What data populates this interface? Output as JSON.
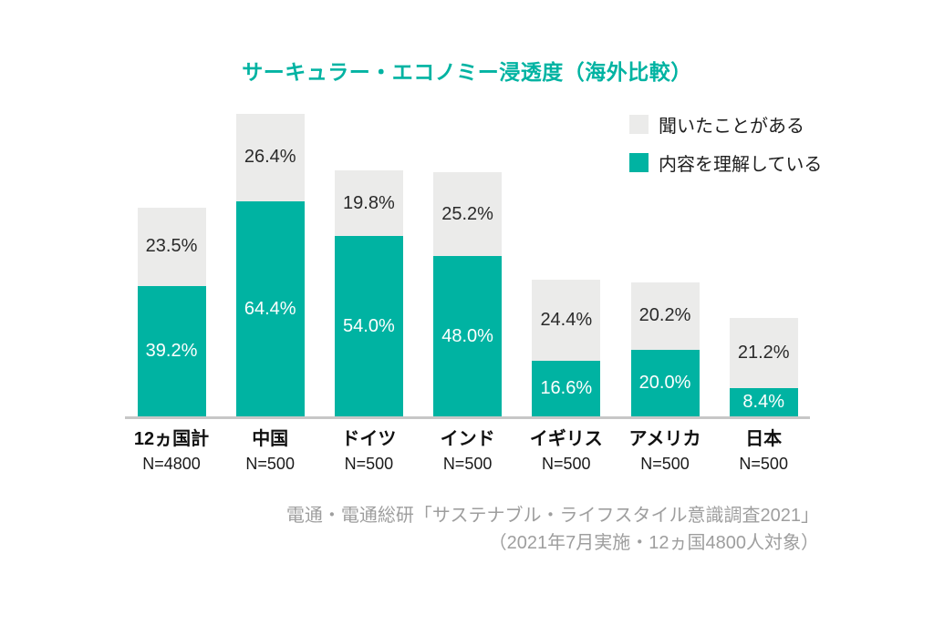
{
  "title": {
    "text": "サーキュラー・エコノミー浸透度（海外比較）",
    "color": "#00b3a2"
  },
  "legend": {
    "items": [
      {
        "label": "聞いたことがある",
        "color": "#ebebea"
      },
      {
        "label": "内容を理解している",
        "color": "#00b3a2"
      }
    ]
  },
  "chart_data": {
    "type": "bar",
    "stacked": true,
    "orientation": "vertical",
    "title": "サーキュラー・エコノミー浸透度（海外比較）",
    "categories": [
      "12ヵ国計",
      "中国",
      "ドイツ",
      "インド",
      "イギリス",
      "アメリカ",
      "日本"
    ],
    "sample_sizes": [
      "N=4800",
      "N=500",
      "N=500",
      "N=500",
      "N=500",
      "N=500",
      "N=500"
    ],
    "series": [
      {
        "name": "内容を理解している",
        "color": "#00b3a2",
        "label_color": "#ffffff",
        "values": [
          39.2,
          64.4,
          54.0,
          48.0,
          16.6,
          20.0,
          8.4
        ]
      },
      {
        "name": "聞いたことがある",
        "color": "#ebebea",
        "label_color": "#2a2a2a",
        "values": [
          23.5,
          26.4,
          19.8,
          25.2,
          24.4,
          20.2,
          21.2
        ]
      }
    ],
    "value_suffix": "%",
    "value_decimals": 1,
    "ylim": [
      0,
      100
    ],
    "grid": false,
    "legend_position": "top-right"
  },
  "source": {
    "lines": [
      "電通・電通総研「サステナブル・ライフスタイル意識調査2021」",
      "（2021年7月実施・12ヵ国4800人対象）"
    ],
    "color": "#9e9e9e"
  }
}
